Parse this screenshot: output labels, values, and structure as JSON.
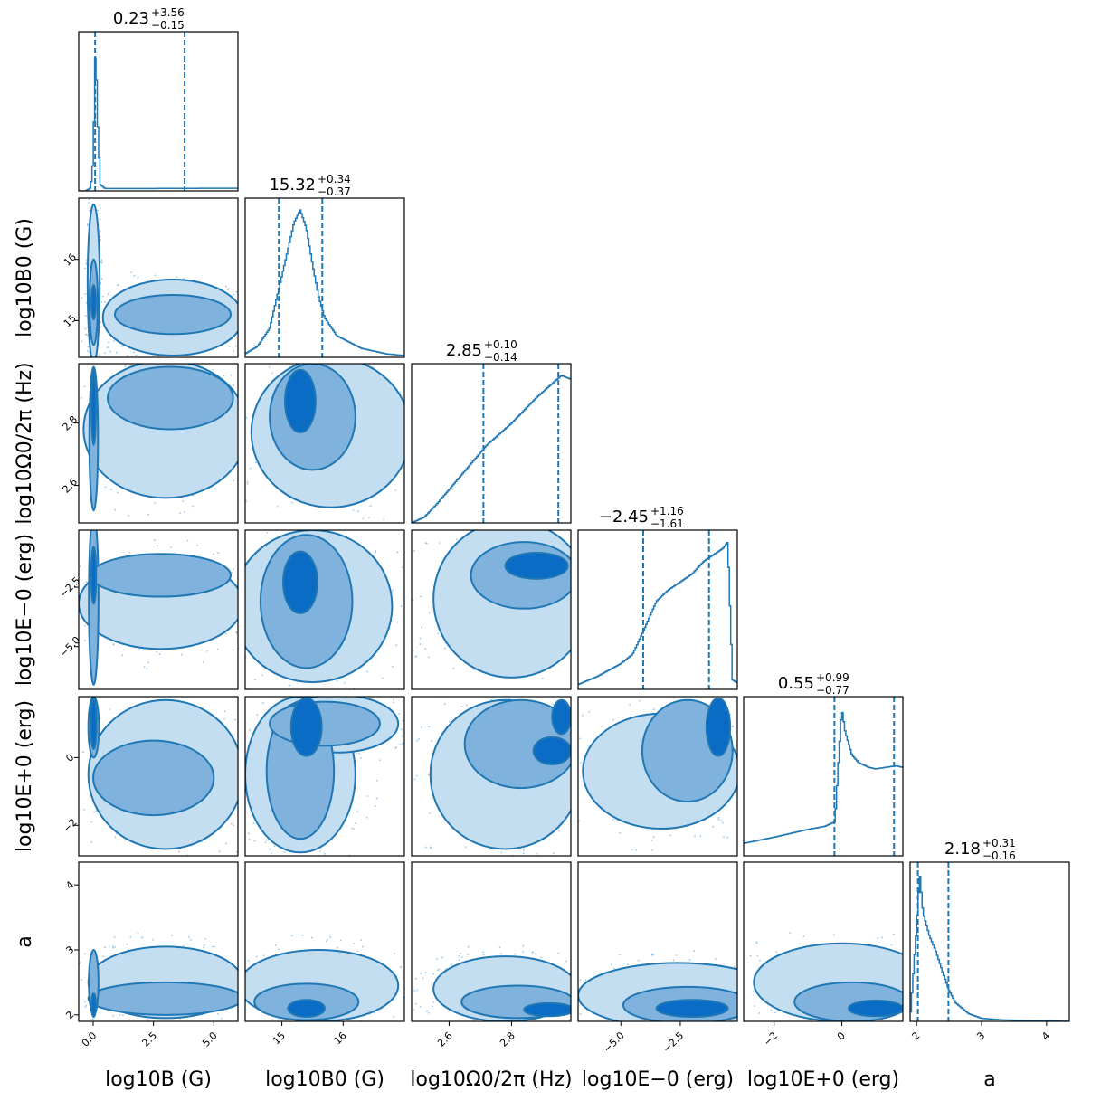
{
  "chart_data": {
    "type": "corner",
    "title": "",
    "colors": {
      "dark": "#1f77b4",
      "fill_inner": "#0a6cc4",
      "fill_mid": "#7fb2dd",
      "fill_outer": "#c3ddf1",
      "point": "#9cc6ea"
    },
    "variables": [
      {
        "id": "logB",
        "label": "log10B (G)",
        "lim": [
          -0.6,
          6.0
        ],
        "ticks": [
          0.0,
          2.5,
          5.0
        ],
        "tick_labels": [
          "0.0",
          "2.5",
          "5.0"
        ],
        "median": "0.23",
        "plus": "+3.56",
        "minus": "−0.15",
        "q16": 0.08,
        "q84": 3.79
      },
      {
        "id": "logB0",
        "label": "log10B0 (G)",
        "lim": [
          14.4,
          17.0
        ],
        "ticks": [
          15,
          16
        ],
        "tick_labels": [
          "15",
          "16"
        ],
        "median": "15.32",
        "plus": "+0.34",
        "minus": "−0.37",
        "q16": 14.95,
        "q84": 15.66
      },
      {
        "id": "logOm",
        "label": "log10Ω0/2π (Hz)",
        "lim": [
          2.48,
          2.99
        ],
        "ticks": [
          2.6,
          2.8
        ],
        "tick_labels": [
          "2.6",
          "2.8"
        ],
        "median": "2.85",
        "plus": "+0.10",
        "minus": "−0.14",
        "q16": 2.71,
        "q84": 2.95
      },
      {
        "id": "logEm",
        "label": "log10E−0 (erg)",
        "lim": [
          -6.8,
          -0.1
        ],
        "ticks": [
          -5.0,
          -2.5
        ],
        "tick_labels": [
          "−5.0",
          "−2.5"
        ],
        "median": "−2.45",
        "plus": "+1.16",
        "minus": "−1.61",
        "q16": -4.06,
        "q84": -1.29
      },
      {
        "id": "logEp",
        "label": "log10E+0 (erg)",
        "lim": [
          -2.9,
          1.8
        ],
        "ticks": [
          -2,
          0
        ],
        "tick_labels": [
          "−2",
          "0"
        ],
        "median": "0.55",
        "plus": "+0.99",
        "minus": "−0.77",
        "q16": -0.22,
        "q84": 1.54
      },
      {
        "id": "a",
        "label": "a",
        "lim": [
          1.9,
          4.35
        ],
        "ticks": [
          2,
          3,
          4
        ],
        "tick_labels": [
          "2",
          "3",
          "4"
        ],
        "median": "2.18",
        "plus": "+0.31",
        "minus": "−0.16",
        "q16": 2.02,
        "q84": 2.49
      }
    ],
    "histograms": [
      {
        "var": "logB",
        "x": [
          -0.3,
          -0.1,
          0.0,
          0.1,
          0.2,
          0.3,
          0.5,
          1,
          2,
          3,
          4,
          5,
          6
        ],
        "y": [
          0,
          2,
          20,
          95,
          40,
          4,
          1.5,
          1.5,
          1.5,
          1.6,
          1.6,
          1.7,
          1.7
        ]
      },
      {
        "var": "logB0",
        "x": [
          14.4,
          14.6,
          14.8,
          14.95,
          15.1,
          15.2,
          15.3,
          15.4,
          15.5,
          15.6,
          15.7,
          15.9,
          16.3,
          16.7,
          17.0
        ],
        "y": [
          2,
          6,
          16,
          38,
          60,
          75,
          82,
          72,
          52,
          34,
          22,
          12,
          5,
          2,
          1
        ]
      },
      {
        "var": "logOm",
        "x": [
          2.48,
          2.52,
          2.56,
          2.6,
          2.64,
          2.68,
          2.72,
          2.76,
          2.8,
          2.84,
          2.88,
          2.92,
          2.96,
          2.99
        ],
        "y": [
          0,
          3,
          10,
          18,
          26,
          34,
          42,
          48,
          54,
          61,
          68,
          74,
          80,
          78
        ]
      },
      {
        "var": "logEm",
        "x": [
          -6.8,
          -6,
          -5,
          -4.5,
          -4,
          -3.5,
          -3,
          -2.5,
          -2,
          -1.5,
          -1,
          -0.7,
          -0.5,
          -0.3,
          -0.1
        ],
        "y": [
          3,
          8,
          16,
          22,
          38,
          55,
          62,
          67,
          72,
          80,
          85,
          88,
          92,
          6,
          4
        ]
      },
      {
        "var": "logEp",
        "x": [
          -2.9,
          -2,
          -1,
          -0.5,
          -0.2,
          -0.1,
          0.0,
          0.1,
          0.3,
          0.5,
          0.8,
          1.0,
          1.3,
          1.6,
          1.8
        ],
        "y": [
          8,
          12,
          17,
          19,
          22,
          60,
          95,
          80,
          65,
          60,
          57,
          56,
          57,
          58,
          57
        ]
      },
      {
        "var": "a",
        "x": [
          1.9,
          2.0,
          2.05,
          2.1,
          2.2,
          2.3,
          2.4,
          2.5,
          2.6,
          2.8,
          3.0,
          3.3,
          3.7,
          4.35
        ],
        "y": [
          0,
          60,
          95,
          70,
          55,
          45,
          32,
          20,
          12,
          5,
          2,
          1,
          0.5,
          0
        ]
      }
    ],
    "pairs": [
      {
        "x": "logB",
        "y": "logB0",
        "regions": [
          {
            "level": "outer",
            "cx": 0.02,
            "cy": 15.6,
            "rx": 0.25,
            "ry": 1.3
          },
          {
            "level": "outer",
            "cx": 3.3,
            "cy": 15.05,
            "rx": 2.9,
            "ry": 0.62
          },
          {
            "level": "mid",
            "cx": 0.02,
            "cy": 15.3,
            "rx": 0.17,
            "ry": 0.7
          },
          {
            "level": "mid",
            "cx": 3.3,
            "cy": 15.1,
            "rx": 2.4,
            "ry": 0.32
          },
          {
            "level": "inner",
            "cx": 0.02,
            "cy": 15.3,
            "rx": 0.09,
            "ry": 0.28
          }
        ]
      },
      {
        "x": "logB",
        "y": "logOm",
        "regions": [
          {
            "level": "outer",
            "cx": 3.0,
            "cy": 2.78,
            "rx": 3.4,
            "ry": 0.22
          },
          {
            "level": "mid",
            "cx": 0.02,
            "cy": 2.75,
            "rx": 0.18,
            "ry": 0.23
          },
          {
            "level": "mid",
            "cx": 3.2,
            "cy": 2.88,
            "rx": 2.6,
            "ry": 0.1
          },
          {
            "level": "inner",
            "cx": 0.02,
            "cy": 2.85,
            "rx": 0.09,
            "ry": 0.12
          }
        ]
      },
      {
        "x": "logB",
        "y": "logEm",
        "regions": [
          {
            "level": "outer",
            "cx": 2.8,
            "cy": -3.2,
            "rx": 3.4,
            "ry": 1.9
          },
          {
            "level": "mid",
            "cx": 0.02,
            "cy": -3.0,
            "rx": 0.2,
            "ry": 3.6
          },
          {
            "level": "mid",
            "cx": 2.8,
            "cy": -2.0,
            "rx": 2.9,
            "ry": 0.9
          },
          {
            "level": "inner",
            "cx": 0.02,
            "cy": -2.0,
            "rx": 0.1,
            "ry": 1.2
          }
        ]
      },
      {
        "x": "logB",
        "y": "logEp",
        "regions": [
          {
            "level": "outer",
            "cx": 3.0,
            "cy": -0.5,
            "rx": 3.2,
            "ry": 2.2
          },
          {
            "level": "mid",
            "cx": 0.02,
            "cy": 0.9,
            "rx": 0.22,
            "ry": 0.9
          },
          {
            "level": "mid",
            "cx": 2.5,
            "cy": -0.6,
            "rx": 2.5,
            "ry": 1.1
          },
          {
            "level": "inner",
            "cx": 0.02,
            "cy": 1.0,
            "rx": 0.12,
            "ry": 0.75
          }
        ]
      },
      {
        "x": "logB",
        "y": "a",
        "regions": [
          {
            "level": "outer",
            "cx": 3.0,
            "cy": 2.5,
            "rx": 3.2,
            "ry": 0.55
          },
          {
            "level": "mid",
            "cx": 3.0,
            "cy": 2.25,
            "rx": 3.2,
            "ry": 0.25
          },
          {
            "level": "mid",
            "cx": 0.02,
            "cy": 2.5,
            "rx": 0.2,
            "ry": 0.5
          },
          {
            "level": "inner",
            "cx": 0.02,
            "cy": 2.15,
            "rx": 0.09,
            "ry": 0.18
          }
        ]
      },
      {
        "x": "logB0",
        "y": "logOm",
        "regions": [
          {
            "level": "outer",
            "cx": 15.8,
            "cy": 2.77,
            "rx": 1.3,
            "ry": 0.24
          },
          {
            "level": "mid",
            "cx": 15.5,
            "cy": 2.82,
            "rx": 0.7,
            "ry": 0.17
          },
          {
            "level": "inner",
            "cx": 15.3,
            "cy": 2.87,
            "rx": 0.25,
            "ry": 0.1
          }
        ]
      },
      {
        "x": "logB0",
        "y": "logEm",
        "regions": [
          {
            "level": "outer",
            "cx": 15.5,
            "cy": -3.3,
            "rx": 1.3,
            "ry": 3.2
          },
          {
            "level": "mid",
            "cx": 15.4,
            "cy": -3.1,
            "rx": 0.75,
            "ry": 2.8
          },
          {
            "level": "inner",
            "cx": 15.3,
            "cy": -2.3,
            "rx": 0.28,
            "ry": 1.3
          }
        ]
      },
      {
        "x": "logB0",
        "y": "logEp",
        "regions": [
          {
            "level": "outer",
            "cx": 15.3,
            "cy": -0.5,
            "rx": 0.9,
            "ry": 2.3
          },
          {
            "level": "outer",
            "cx": 15.9,
            "cy": 1.0,
            "rx": 1.0,
            "ry": 0.85
          },
          {
            "level": "mid",
            "cx": 15.3,
            "cy": -0.4,
            "rx": 0.55,
            "ry": 2.0
          },
          {
            "level": "mid",
            "cx": 15.7,
            "cy": 1.0,
            "rx": 0.9,
            "ry": 0.65
          },
          {
            "level": "inner",
            "cx": 15.4,
            "cy": 0.9,
            "rx": 0.25,
            "ry": 0.85
          }
        ]
      },
      {
        "x": "logB0",
        "y": "a",
        "regions": [
          {
            "level": "outer",
            "cx": 15.6,
            "cy": 2.45,
            "rx": 1.3,
            "ry": 0.55
          },
          {
            "level": "mid",
            "cx": 15.4,
            "cy": 2.2,
            "rx": 0.85,
            "ry": 0.28
          },
          {
            "level": "inner",
            "cx": 15.4,
            "cy": 2.1,
            "rx": 0.3,
            "ry": 0.13
          }
        ]
      },
      {
        "x": "logOm",
        "y": "logEm",
        "regions": [
          {
            "level": "outer",
            "cx": 2.8,
            "cy": -3.0,
            "rx": 0.25,
            "ry": 3.3
          },
          {
            "level": "mid",
            "cx": 2.84,
            "cy": -2.0,
            "rx": 0.17,
            "ry": 1.4
          },
          {
            "level": "inner",
            "cx": 2.88,
            "cy": -1.6,
            "rx": 0.1,
            "ry": 0.55
          }
        ]
      },
      {
        "x": "logOm",
        "y": "logEp",
        "regions": [
          {
            "level": "outer",
            "cx": 2.78,
            "cy": -0.5,
            "rx": 0.24,
            "ry": 2.2
          },
          {
            "level": "mid",
            "cx": 2.83,
            "cy": 0.4,
            "rx": 0.18,
            "ry": 1.3
          },
          {
            "level": "inner",
            "cx": 2.93,
            "cy": 0.2,
            "rx": 0.06,
            "ry": 0.4
          },
          {
            "level": "inner",
            "cx": 2.96,
            "cy": 1.2,
            "rx": 0.03,
            "ry": 0.5
          }
        ]
      },
      {
        "x": "logOm",
        "y": "a",
        "regions": [
          {
            "level": "outer",
            "cx": 2.78,
            "cy": 2.4,
            "rx": 0.23,
            "ry": 0.5
          },
          {
            "level": "mid",
            "cx": 2.82,
            "cy": 2.2,
            "rx": 0.18,
            "ry": 0.25
          },
          {
            "level": "inner",
            "cx": 2.92,
            "cy": 2.08,
            "rx": 0.08,
            "ry": 0.1
          }
        ]
      },
      {
        "x": "logEm",
        "y": "logEp",
        "regions": [
          {
            "level": "outer",
            "cx": -3.3,
            "cy": -0.4,
            "rx": 3.3,
            "ry": 1.7
          },
          {
            "level": "mid",
            "cx": -2.2,
            "cy": 0.2,
            "rx": 1.9,
            "ry": 1.5
          },
          {
            "level": "inner",
            "cx": -0.9,
            "cy": 0.9,
            "rx": 0.5,
            "ry": 0.85
          }
        ]
      },
      {
        "x": "logEm",
        "y": "a",
        "regions": [
          {
            "level": "outer",
            "cx": -2.6,
            "cy": 2.3,
            "rx": 4.2,
            "ry": 0.5
          },
          {
            "level": "mid",
            "cx": -2.2,
            "cy": 2.15,
            "rx": 2.7,
            "ry": 0.28
          },
          {
            "level": "inner",
            "cx": -2.0,
            "cy": 2.1,
            "rx": 1.5,
            "ry": 0.13
          }
        ]
      },
      {
        "x": "logEp",
        "y": "a",
        "regions": [
          {
            "level": "outer",
            "cx": 0.0,
            "cy": 2.5,
            "rx": 2.6,
            "ry": 0.6
          },
          {
            "level": "mid",
            "cx": 0.3,
            "cy": 2.2,
            "rx": 1.7,
            "ry": 0.3
          },
          {
            "level": "inner",
            "cx": 1.0,
            "cy": 2.1,
            "rx": 0.8,
            "ry": 0.12
          }
        ]
      }
    ]
  }
}
